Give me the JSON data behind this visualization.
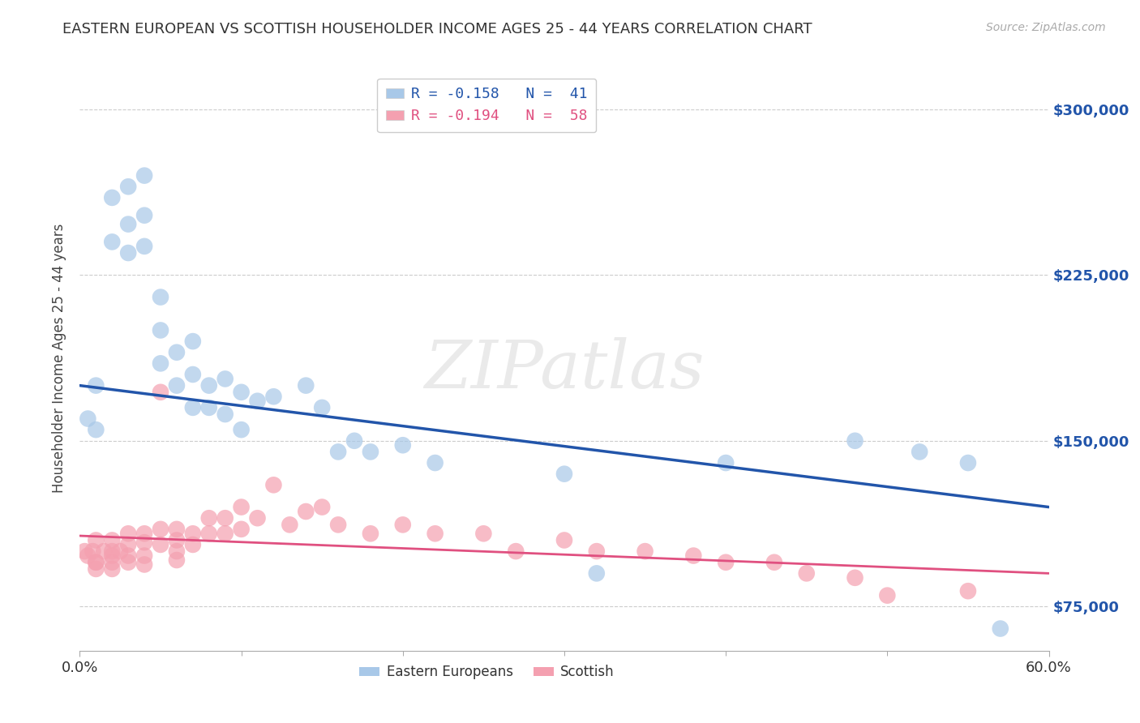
{
  "title": "EASTERN EUROPEAN VS SCOTTISH HOUSEHOLDER INCOME AGES 25 - 44 YEARS CORRELATION CHART",
  "source": "Source: ZipAtlas.com",
  "ylabel": "Householder Income Ages 25 - 44 years",
  "xlim": [
    0.0,
    0.6
  ],
  "ylim": [
    55000,
    320000
  ],
  "yticks": [
    75000,
    150000,
    225000,
    300000
  ],
  "ytick_labels": [
    "$75,000",
    "$150,000",
    "$225,000",
    "$300,000"
  ],
  "xtick_positions": [
    0.0,
    0.6
  ],
  "xtick_labels": [
    "0.0%",
    "60.0%"
  ],
  "blue_R": -0.158,
  "blue_N": 41,
  "pink_R": -0.194,
  "pink_N": 58,
  "blue_color": "#A8C8E8",
  "pink_color": "#F4A0B0",
  "blue_line_color": "#2255AA",
  "pink_line_color": "#E05080",
  "blue_scatter_x": [
    0.005,
    0.01,
    0.01,
    0.02,
    0.02,
    0.03,
    0.03,
    0.03,
    0.04,
    0.04,
    0.04,
    0.05,
    0.05,
    0.05,
    0.06,
    0.06,
    0.07,
    0.07,
    0.07,
    0.08,
    0.08,
    0.09,
    0.09,
    0.1,
    0.1,
    0.11,
    0.12,
    0.14,
    0.15,
    0.16,
    0.17,
    0.18,
    0.2,
    0.22,
    0.3,
    0.32,
    0.4,
    0.48,
    0.52,
    0.55,
    0.57
  ],
  "blue_scatter_y": [
    160000,
    175000,
    155000,
    260000,
    240000,
    265000,
    248000,
    235000,
    270000,
    252000,
    238000,
    215000,
    200000,
    185000,
    190000,
    175000,
    195000,
    180000,
    165000,
    175000,
    165000,
    178000,
    162000,
    172000,
    155000,
    168000,
    170000,
    175000,
    165000,
    145000,
    150000,
    145000,
    148000,
    140000,
    135000,
    90000,
    140000,
    150000,
    145000,
    140000,
    65000
  ],
  "pink_scatter_x": [
    0.003,
    0.005,
    0.008,
    0.01,
    0.01,
    0.01,
    0.01,
    0.015,
    0.02,
    0.02,
    0.02,
    0.02,
    0.02,
    0.025,
    0.03,
    0.03,
    0.03,
    0.03,
    0.04,
    0.04,
    0.04,
    0.04,
    0.05,
    0.05,
    0.05,
    0.06,
    0.06,
    0.06,
    0.06,
    0.07,
    0.07,
    0.08,
    0.08,
    0.09,
    0.09,
    0.1,
    0.1,
    0.11,
    0.12,
    0.13,
    0.14,
    0.15,
    0.16,
    0.18,
    0.2,
    0.22,
    0.25,
    0.27,
    0.3,
    0.32,
    0.35,
    0.38,
    0.4,
    0.43,
    0.45,
    0.48,
    0.5,
    0.55
  ],
  "pink_scatter_y": [
    100000,
    98000,
    100000,
    95000,
    92000,
    105000,
    95000,
    100000,
    105000,
    100000,
    98000,
    95000,
    92000,
    100000,
    108000,
    103000,
    98000,
    95000,
    108000,
    104000,
    98000,
    94000,
    172000,
    110000,
    103000,
    110000,
    105000,
    100000,
    96000,
    108000,
    103000,
    115000,
    108000,
    115000,
    108000,
    120000,
    110000,
    115000,
    130000,
    112000,
    118000,
    120000,
    112000,
    108000,
    112000,
    108000,
    108000,
    100000,
    105000,
    100000,
    100000,
    98000,
    95000,
    95000,
    90000,
    88000,
    80000,
    82000
  ],
  "watermark": "ZIPatlas",
  "background_color": "#FFFFFF",
  "grid_color": "#CCCCCC",
  "legend_label_1": "R = -0.158   N =  41",
  "legend_label_2": "R = -0.194   N =  58",
  "bottom_legend_1": "Eastern Europeans",
  "bottom_legend_2": "Scottish"
}
